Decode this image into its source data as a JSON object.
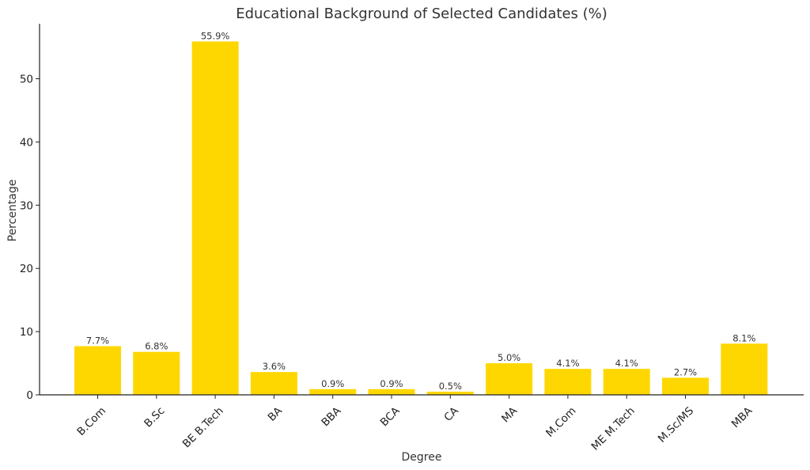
{
  "chart_data": {
    "type": "bar",
    "title": "Educational Background of Selected Candidates (%)",
    "xlabel": "Degree",
    "ylabel": "Percentage",
    "categories": [
      "B.Com",
      "B.Sc",
      "BE B.Tech",
      "BA",
      "BBA",
      "BCA",
      "CA",
      "MA",
      "M.Com",
      "ME M.Tech",
      "M.Sc/MS",
      "MBA"
    ],
    "values": [
      7.7,
      6.8,
      55.9,
      3.6,
      0.9,
      0.9,
      0.5,
      5.0,
      4.1,
      4.1,
      2.7,
      8.1
    ],
    "data_labels": [
      "7.7%",
      "6.8%",
      "55.9%",
      "3.6%",
      "0.9%",
      "0.9%",
      "0.5%",
      "5.0%",
      "4.1%",
      "4.1%",
      "2.7%",
      "8.1%"
    ],
    "yticks": [
      0,
      10,
      20,
      30,
      40,
      50
    ],
    "ylim": [
      0,
      58.7
    ],
    "grid": false,
    "bar_color": "#FFD700"
  }
}
